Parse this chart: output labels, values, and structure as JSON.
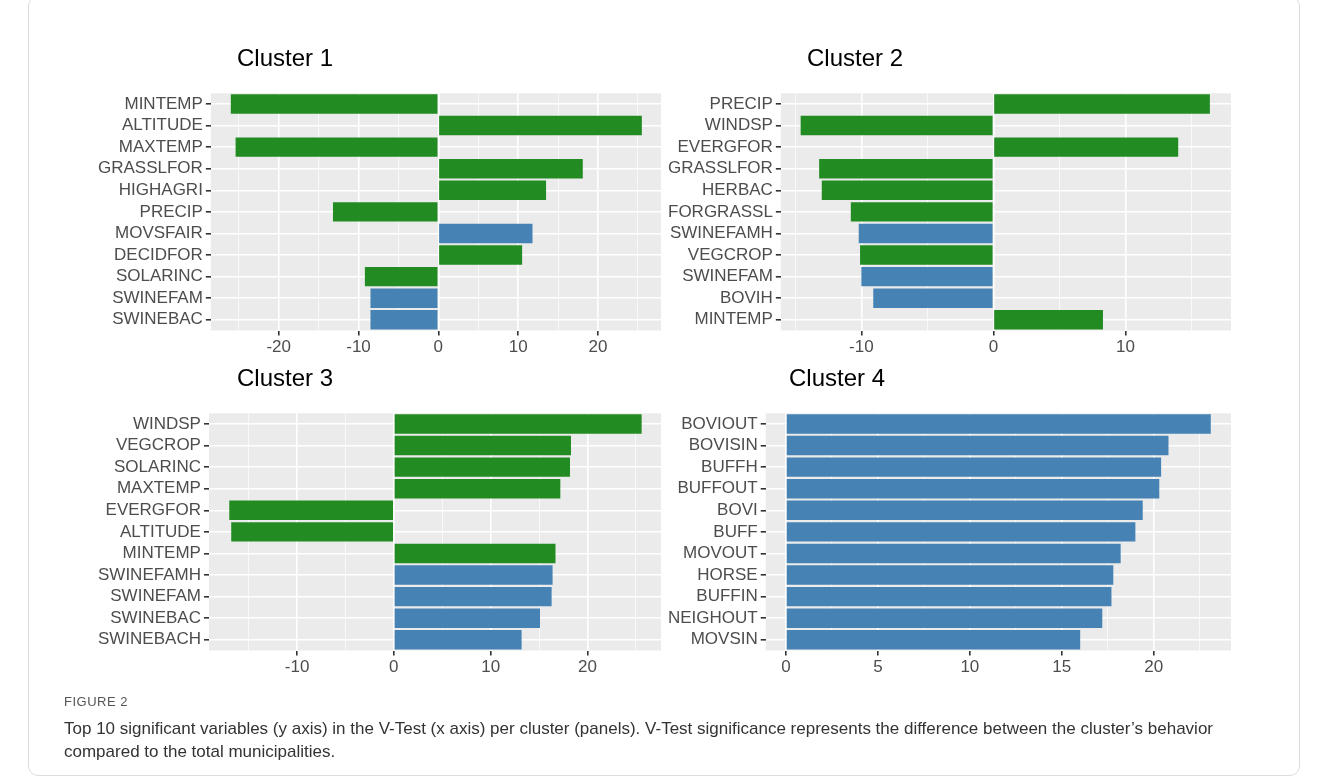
{
  "chart_data": [
    {
      "type": "bar",
      "orientation": "horizontal",
      "title": "Cluster 1",
      "categories": [
        "MINTEMP",
        "ALTITUDE",
        "MAXTEMP",
        "GRASSLFOR",
        "HIGHAGRI",
        "PRECIP",
        "MOVSFAIR",
        "DECIDFOR",
        "SOLARINC",
        "SWINEFAM",
        "SWINEBAC"
      ],
      "values": [
        -26.0,
        25.5,
        -25.4,
        18.1,
        13.5,
        -13.2,
        11.8,
        10.5,
        -9.2,
        -8.5,
        -8.5
      ],
      "colors": [
        "#228b22",
        "#228b22",
        "#228b22",
        "#228b22",
        "#228b22",
        "#228b22",
        "#4682b4",
        "#228b22",
        "#228b22",
        "#4682b4",
        "#4682b4"
      ],
      "xlim": [
        -28.5,
        27.9
      ],
      "xticks": [
        {
          "value": -25,
          "label": null
        },
        -20,
        {
          "value": -15,
          "label": null
        },
        -10,
        {
          "value": -5,
          "label": null
        },
        0,
        {
          "value": 5,
          "label": null
        },
        10,
        {
          "value": 15,
          "label": null
        },
        20,
        {
          "value": 25,
          "label": null
        }
      ],
      "grid": true
    },
    {
      "type": "bar",
      "orientation": "horizontal",
      "title": "Cluster 2",
      "categories": [
        "PRECIP",
        "WINDSP",
        "EVERGFOR",
        "GRASSLFOR",
        "HERBAC",
        "FORGRASSL",
        "SWINEFAMH",
        "VEGCROP",
        "SWINEFAM",
        "BOVIH",
        "MINTEMP"
      ],
      "values": [
        16.4,
        -14.6,
        14.0,
        -13.2,
        -13.0,
        -10.8,
        -10.2,
        -10.1,
        -10.0,
        -9.1,
        8.3
      ],
      "colors": [
        "#228b22",
        "#228b22",
        "#228b22",
        "#228b22",
        "#228b22",
        "#228b22",
        "#4682b4",
        "#228b22",
        "#4682b4",
        "#4682b4",
        "#228b22"
      ],
      "xlim": [
        -16.1,
        18.0
      ],
      "xticks": [
        {
          "value": -15,
          "label": null
        },
        -10,
        {
          "value": -5,
          "label": null
        },
        0,
        {
          "value": 5,
          "label": null
        },
        10,
        {
          "value": 15,
          "label": null
        }
      ],
      "grid": true
    },
    {
      "type": "bar",
      "orientation": "horizontal",
      "title": "Cluster 3",
      "categories": [
        "WINDSP",
        "VEGCROP",
        "SOLARINC",
        "MAXTEMP",
        "EVERGFOR",
        "ALTITUDE",
        "MINTEMP",
        "SWINEFAMH",
        "SWINEFAM",
        "SWINEBAC",
        "SWINEBACH"
      ],
      "values": [
        25.6,
        18.3,
        18.2,
        17.2,
        -17.0,
        -16.8,
        16.7,
        16.4,
        16.3,
        15.1,
        13.2
      ],
      "colors": [
        "#228b22",
        "#228b22",
        "#228b22",
        "#228b22",
        "#228b22",
        "#228b22",
        "#228b22",
        "#4682b4",
        "#4682b4",
        "#4682b4",
        "#4682b4"
      ],
      "xlim": [
        -19.1,
        27.6
      ],
      "xticks": [
        {
          "value": -15,
          "label": null
        },
        -10,
        {
          "value": -5,
          "label": null
        },
        0,
        {
          "value": 5,
          "label": null
        },
        10,
        {
          "value": 15,
          "label": null
        },
        20,
        {
          "value": 25,
          "label": null
        }
      ],
      "grid": true
    },
    {
      "type": "bar",
      "orientation": "horizontal",
      "title": "Cluster 4",
      "categories": [
        "BOVIOUT",
        "BOVISIN",
        "BUFFH",
        "BUFFOUT",
        "BOVI",
        "BUFF",
        "MOVOUT",
        "HORSE",
        "BUFFIN",
        "NEIGHOUT",
        "MOVSIN"
      ],
      "values": [
        23.1,
        20.8,
        20.4,
        20.3,
        19.4,
        19.0,
        18.2,
        17.8,
        17.7,
        17.2,
        16.0
      ],
      "colors": [
        "#4682b4",
        "#4682b4",
        "#4682b4",
        "#4682b4",
        "#4682b4",
        "#4682b4",
        "#4682b4",
        "#4682b4",
        "#4682b4",
        "#4682b4",
        "#4682b4"
      ],
      "xlim": [
        -1.1,
        24.2
      ],
      "xticks": [
        0,
        {
          "value": 2.5,
          "label": null
        },
        5,
        {
          "value": 7.5,
          "label": null
        },
        10,
        {
          "value": 12.5,
          "label": null
        },
        15,
        {
          "value": 17.5,
          "label": null
        },
        20,
        {
          "value": 22.5,
          "label": null
        }
      ],
      "grid": true,
      "annotations": [
        "FIGURE 2",
        "Top 10 significant variables (y axis) in the V-Test (x axis) per cluster (panels). V-Test significance represents the difference between the cluster’s behavior compared to the total municipalities."
      ]
    }
  ]
}
